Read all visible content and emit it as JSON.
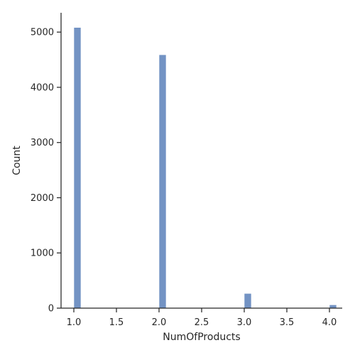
{
  "chart_data": {
    "type": "bar",
    "subtype": "histogram",
    "xlabel": "NumOfProducts",
    "ylabel": "Count",
    "xlim": [
      0.85,
      4.15
    ],
    "ylim": [
      0,
      5350
    ],
    "x_ticks": [
      1.0,
      1.5,
      2.0,
      2.5,
      3.0,
      3.5,
      4.0
    ],
    "x_tick_labels": [
      "1.0",
      "1.5",
      "2.0",
      "2.5",
      "3.0",
      "3.5",
      "4.0"
    ],
    "y_ticks": [
      0,
      1000,
      2000,
      3000,
      4000,
      5000
    ],
    "y_tick_labels": [
      "0",
      "1000",
      "2000",
      "3000",
      "4000",
      "5000"
    ],
    "bin_width": 0.0833,
    "bars": [
      {
        "x_start": 1.0,
        "x_end": 1.0833,
        "value": 5084
      },
      {
        "x_start": 2.0,
        "x_end": 2.0833,
        "value": 4590
      },
      {
        "x_start": 3.0,
        "x_end": 3.0833,
        "value": 266
      },
      {
        "x_start": 4.0,
        "x_end": 4.0833,
        "value": 60
      }
    ],
    "bar_color": "#7393c4",
    "grid": false,
    "legend": "none"
  }
}
